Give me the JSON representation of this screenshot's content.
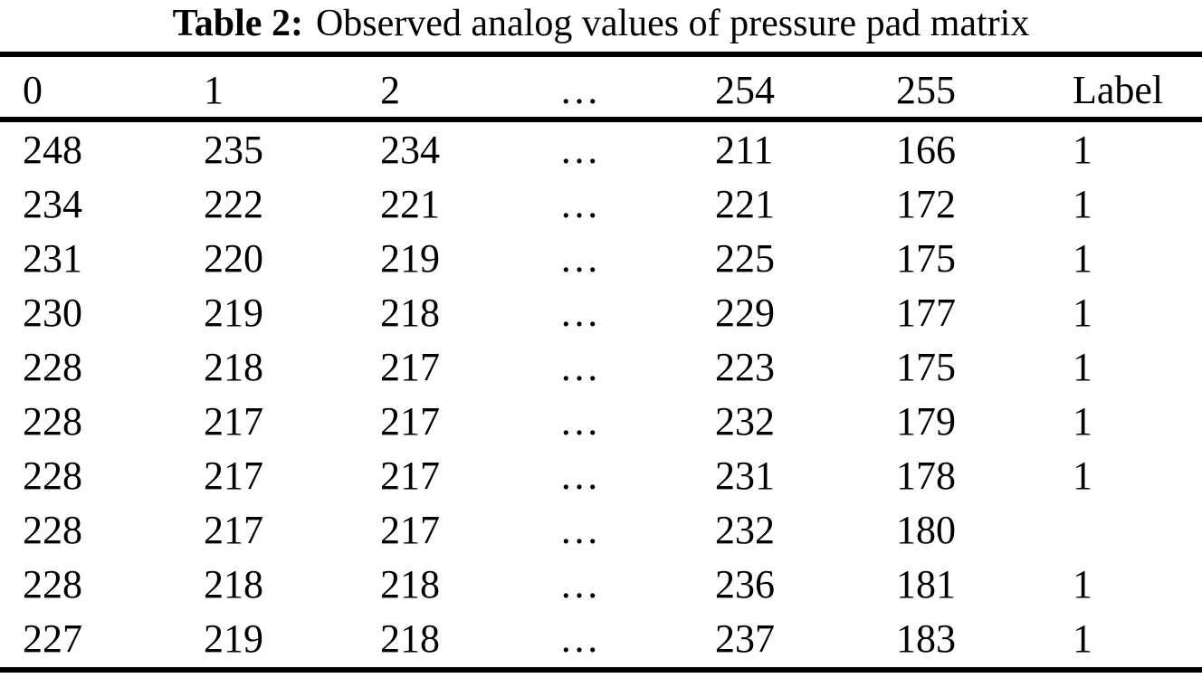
{
  "title": {
    "label": "Table 2:",
    "caption": "Observed analog values of pressure pad matrix"
  },
  "chart_data": {
    "type": "table",
    "title": "Table 2: Observed analog values of pressure pad matrix",
    "columns": [
      "0",
      "1",
      "2",
      "…",
      "254",
      "255",
      "Label"
    ],
    "rows": [
      [
        "248",
        "235",
        "234",
        "…",
        "211",
        "166",
        "1"
      ],
      [
        "234",
        "222",
        "221",
        "…",
        "221",
        "172",
        "1"
      ],
      [
        "231",
        "220",
        "219",
        "…",
        "225",
        "175",
        "1"
      ],
      [
        "230",
        "219",
        "218",
        "…",
        "229",
        "177",
        "1"
      ],
      [
        "228",
        "218",
        "217",
        "…",
        "223",
        "175",
        "1"
      ],
      [
        "228",
        "217",
        "217",
        "…",
        "232",
        "179",
        "1"
      ],
      [
        "228",
        "217",
        "217",
        "…",
        "231",
        "178",
        "1"
      ],
      [
        "228",
        "217",
        "217",
        "…",
        "232",
        "180",
        ""
      ],
      [
        "228",
        "218",
        "218",
        "…",
        "236",
        "181",
        "1"
      ],
      [
        "227",
        "219",
        "218",
        "…",
        "237",
        "183",
        "1"
      ]
    ],
    "layout": {
      "text_color": "#000000",
      "background_color": "#ffffff",
      "rule_color": "#000000"
    }
  }
}
